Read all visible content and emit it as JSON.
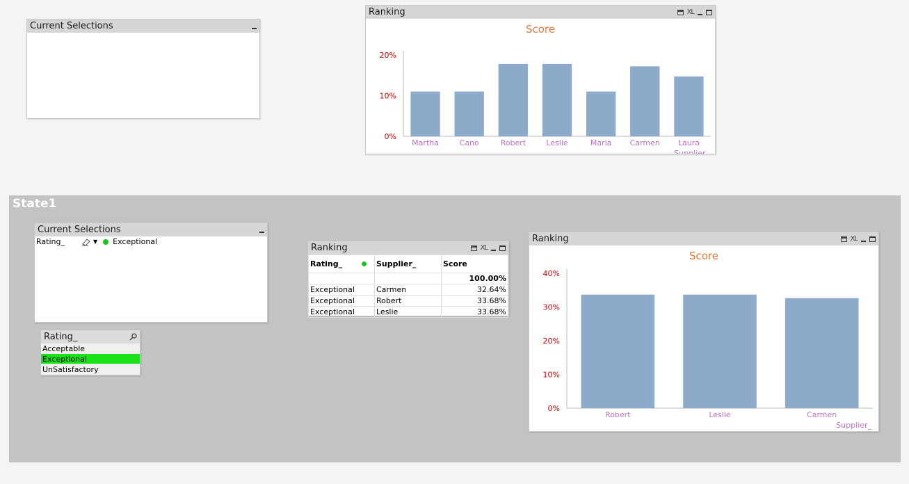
{
  "top": {
    "current_selections": {
      "title": "Current Selections"
    },
    "ranking_chart": {
      "title": "Ranking",
      "chart_data": {
        "type": "bar",
        "title": "Score",
        "xlabel": "Supplier_",
        "categories": [
          "Martha",
          "Cano",
          "Robert",
          "Leslie",
          "Maria",
          "Carmen",
          "Laura"
        ],
        "values": [
          11,
          11,
          17.8,
          17.8,
          11,
          17.2,
          14.7
        ],
        "ylim": [
          0,
          20
        ],
        "yticks": [
          "0%",
          "10%",
          "20%"
        ],
        "ytick_values": [
          0,
          10,
          20
        ],
        "bar_color": "#8eaacb",
        "label_color": "#c070c8",
        "tick_color": "#cc0000"
      }
    }
  },
  "state": {
    "label": "State1",
    "current_selections": {
      "title": "Current Selections",
      "field": "Rating_",
      "value": "Exceptional"
    },
    "listbox": {
      "title": "Rating_",
      "items": [
        "Acceptable",
        "Exceptional",
        "UnSatisfactory"
      ],
      "selected": "Exceptional"
    },
    "table": {
      "title": "Ranking",
      "headers": [
        "Rating_",
        "Supplier_",
        "Score"
      ],
      "total": "100.00%",
      "rows": [
        [
          "Exceptional",
          "Carmen",
          "32.64%"
        ],
        [
          "Exceptional",
          "Robert",
          "33.68%"
        ],
        [
          "Exceptional",
          "Leslie",
          "33.68%"
        ]
      ]
    },
    "ranking_chart": {
      "title": "Ranking",
      "chart_data": {
        "type": "bar",
        "title": "Score",
        "xlabel": "Supplier_",
        "categories": [
          "Robert",
          "Leslie",
          "Carmen"
        ],
        "values": [
          33.68,
          33.68,
          32.64
        ],
        "ylim": [
          0,
          40
        ],
        "yticks": [
          "0%",
          "10%",
          "20%",
          "30%",
          "40%"
        ],
        "ytick_values": [
          0,
          10,
          20,
          30,
          40
        ],
        "bar_color": "#8eaacb",
        "label_color": "#c070c8",
        "tick_color": "#cc0000"
      }
    }
  }
}
